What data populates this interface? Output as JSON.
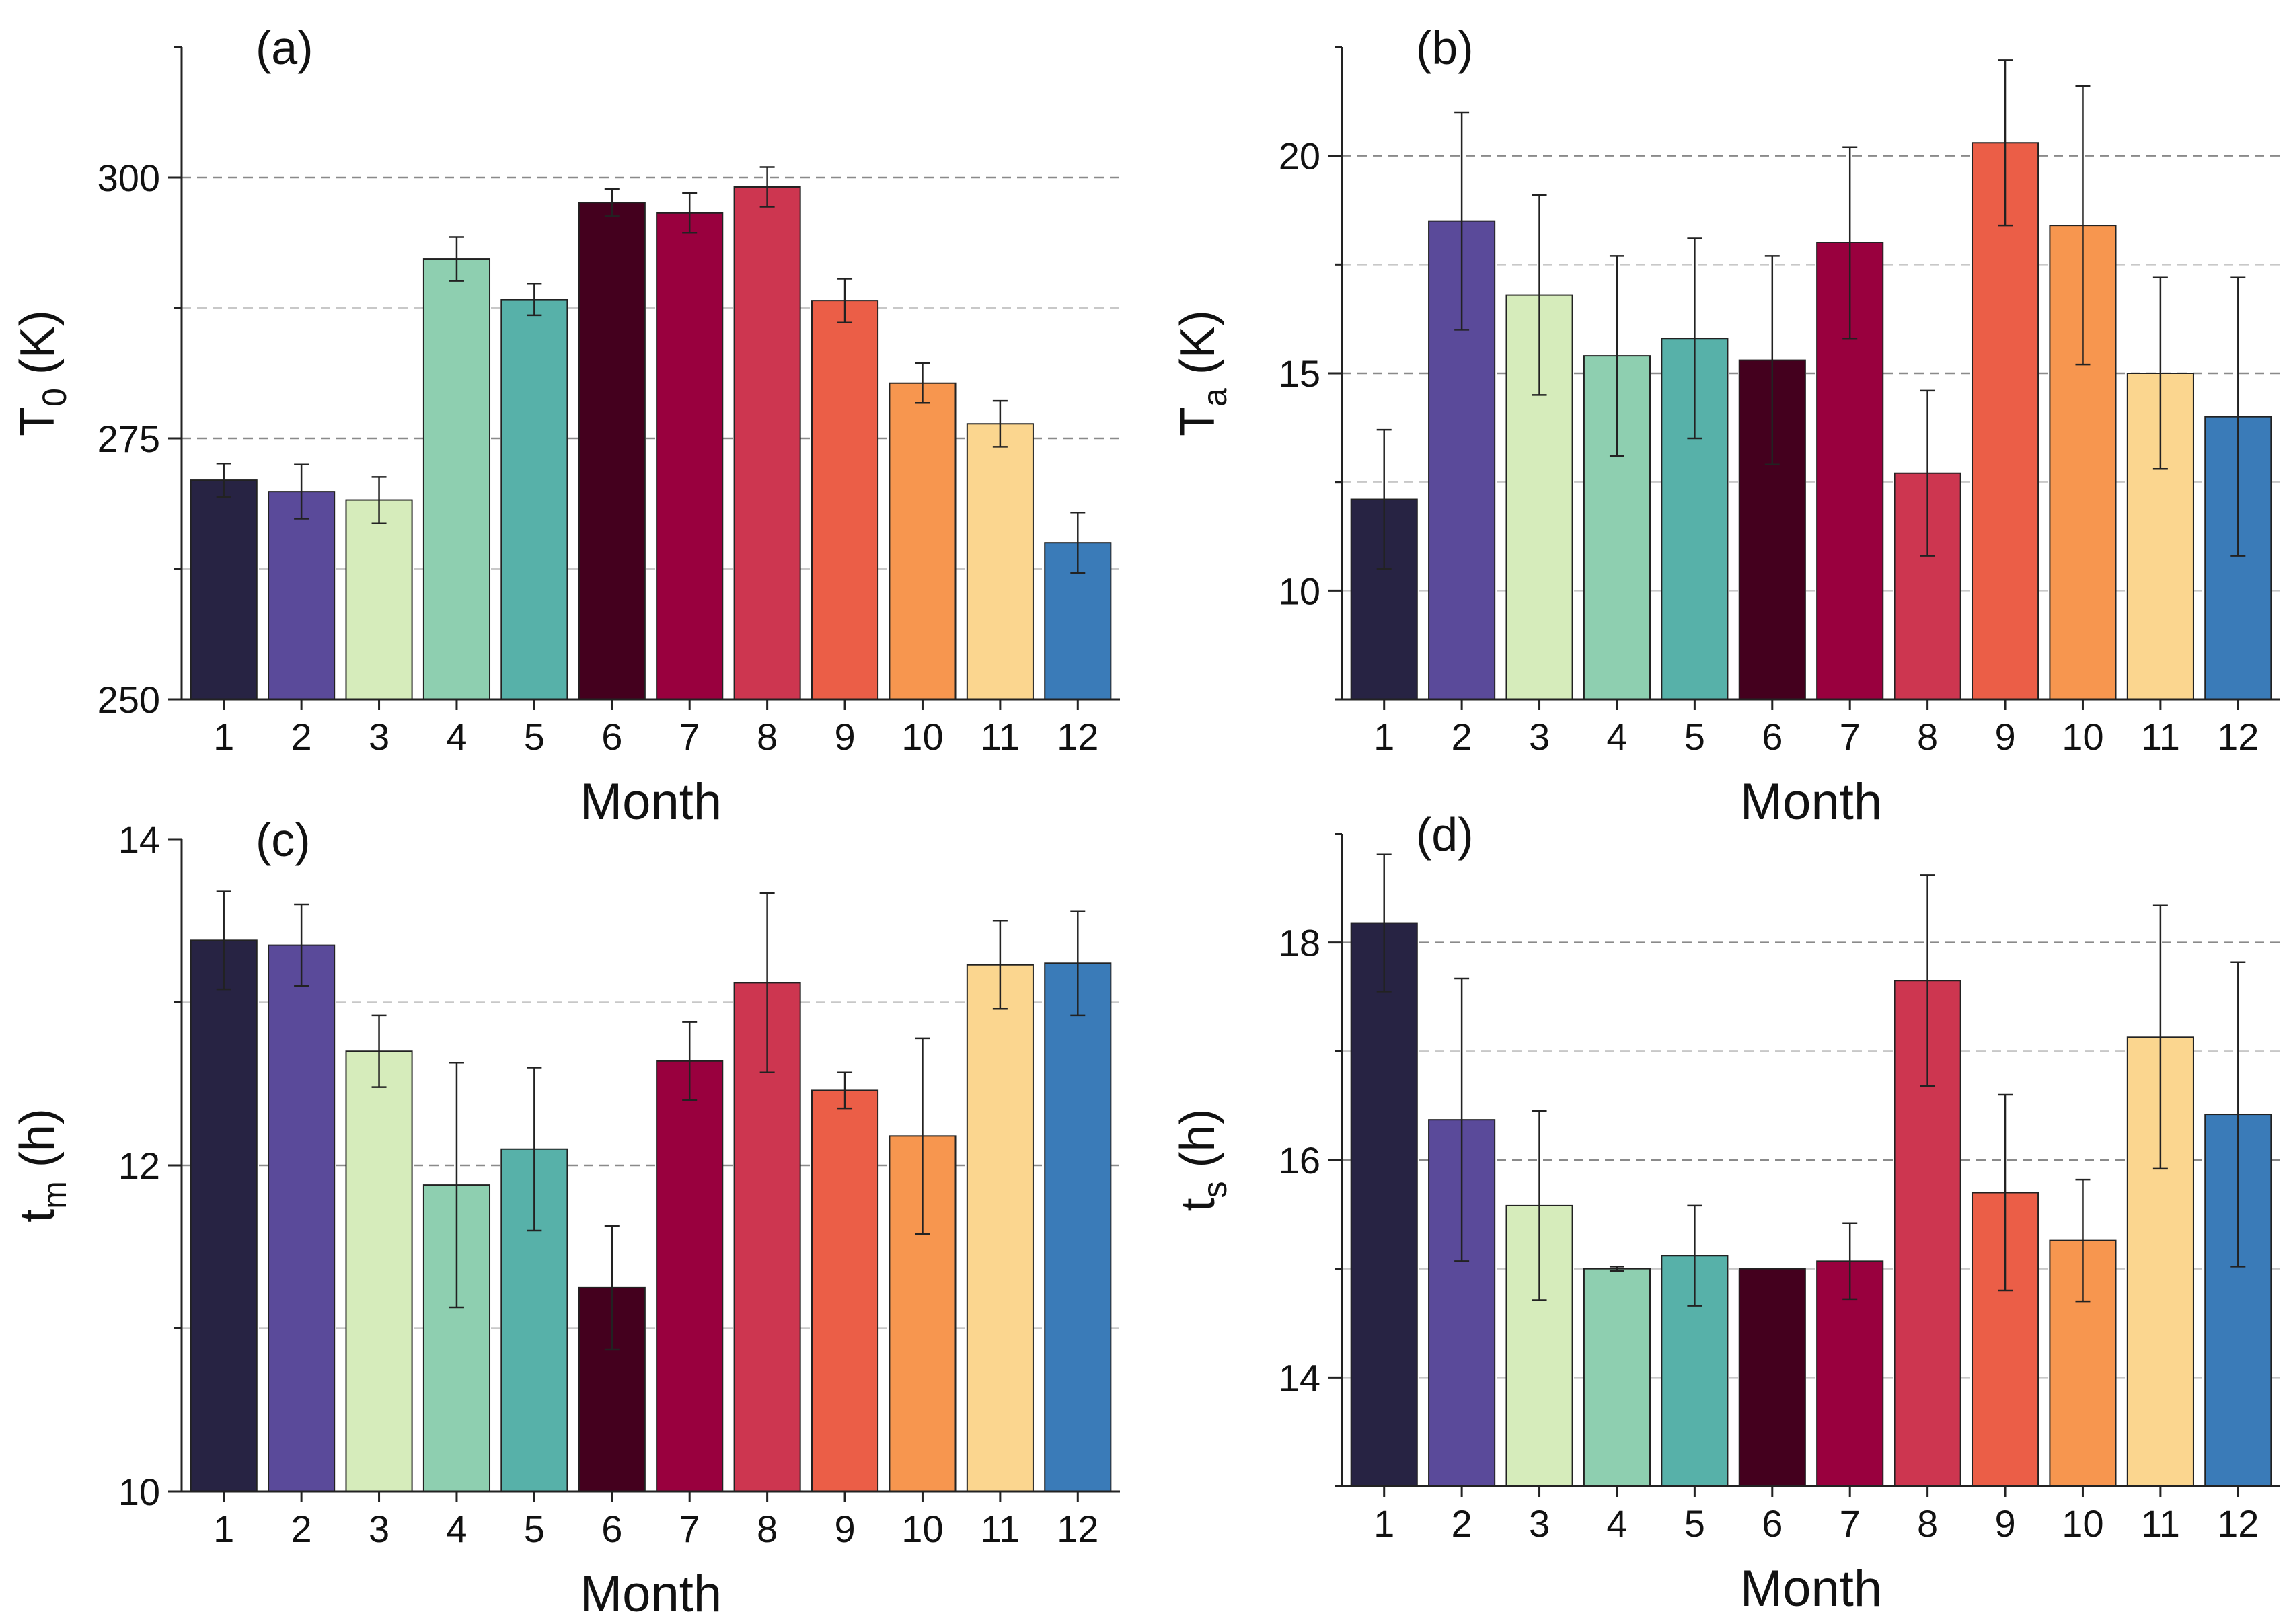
{
  "figure": {
    "x_axis_label": "Month"
  },
  "colors": [
    "#272343",
    "#5a4a9a",
    "#d6ecbb",
    "#8ecfb0",
    "#57b1a9",
    "#44001e",
    "#99003e",
    "#cd3650",
    "#eb5e47",
    "#f7964f",
    "#fbd68f",
    "#3a7bb8"
  ],
  "chart_data": [
    {
      "id": "a",
      "type": "bar",
      "panel_label": "(a)",
      "ylabel_main": "T",
      "ylabel_sub": "0",
      "ylabel_unit": " (K)",
      "xlabel": "Month",
      "categories": [
        "1",
        "2",
        "3",
        "4",
        "5",
        "6",
        "7",
        "8",
        "9",
        "10",
        "11",
        "12"
      ],
      "values": [
        271,
        269.9,
        269.1,
        292.2,
        288.3,
        297.6,
        296.6,
        299.1,
        288.2,
        280.3,
        276.4,
        265
      ],
      "errors": [
        1.6,
        2.6,
        2.2,
        2.1,
        1.5,
        1.3,
        1.9,
        1.9,
        2.1,
        1.9,
        2.2,
        2.9
      ],
      "ylim": [
        250,
        312.5
      ],
      "yticks": [
        250,
        275,
        300
      ],
      "ytick_labels": [
        "250",
        "275",
        "300"
      ],
      "gridlines": [
        262.5,
        275,
        287.5,
        300
      ],
      "major_gridlines": [
        275,
        300
      ]
    },
    {
      "id": "b",
      "type": "bar",
      "panel_label": "(b)",
      "ylabel_main": "T",
      "ylabel_sub": "a",
      "ylabel_unit": " (K)",
      "xlabel": "Month",
      "categories": [
        "1",
        "2",
        "3",
        "4",
        "5",
        "6",
        "7",
        "8",
        "9",
        "10",
        "11",
        "12"
      ],
      "values": [
        12.1,
        18.5,
        16.8,
        15.4,
        15.8,
        15.3,
        18,
        12.7,
        20.3,
        18.4,
        15,
        14
      ],
      "errors": [
        1.6,
        2.5,
        2.3,
        2.3,
        2.3,
        2.4,
        2.2,
        1.9,
        1.9,
        3.2,
        2.2,
        3.2
      ],
      "ylim": [
        7.5,
        22.5
      ],
      "yticks": [
        10,
        15,
        20
      ],
      "ytick_labels": [
        "10",
        "15",
        "20"
      ],
      "gridlines": [
        10,
        12.5,
        15,
        17.5,
        20
      ],
      "major_gridlines": [
        15,
        20
      ]
    },
    {
      "id": "c",
      "type": "bar",
      "panel_label": "(c)",
      "ylabel_main": "t",
      "ylabel_sub": "m",
      "ylabel_unit": " (h)",
      "xlabel": "Month",
      "categories": [
        "1",
        "2",
        "3",
        "4",
        "5",
        "6",
        "7",
        "8",
        "9",
        "10",
        "11",
        "12"
      ],
      "values": [
        13.38,
        13.35,
        12.7,
        11.88,
        12.1,
        11.25,
        12.64,
        13.12,
        12.46,
        12.18,
        13.23,
        13.24
      ],
      "errors": [
        0.3,
        0.25,
        0.22,
        0.75,
        0.5,
        0.38,
        0.24,
        0.55,
        0.11,
        0.6,
        0.27,
        0.32
      ],
      "ylim": [
        10,
        14
      ],
      "yticks": [
        10,
        12,
        14
      ],
      "ytick_labels": [
        "10",
        "12",
        "14"
      ],
      "gridlines": [
        11,
        12,
        13
      ],
      "major_gridlines": [
        12
      ]
    },
    {
      "id": "d",
      "type": "bar",
      "panel_label": "(d)",
      "ylabel_main": "t",
      "ylabel_sub": "s",
      "ylabel_unit": " (h)",
      "xlabel": "Month",
      "categories": [
        "1",
        "2",
        "3",
        "4",
        "5",
        "6",
        "7",
        "8",
        "9",
        "10",
        "11",
        "12"
      ],
      "values": [
        18.18,
        16.37,
        15.58,
        15,
        15.12,
        15,
        15.07,
        17.65,
        15.7,
        15.26,
        17.13,
        16.42
      ],
      "errors": [
        0.63,
        1.3,
        0.87,
        0.02,
        0.46,
        0,
        0.35,
        0.97,
        0.9,
        0.56,
        1.21,
        1.4
      ],
      "ylim": [
        13,
        19
      ],
      "yticks": [
        14,
        16,
        18
      ],
      "ytick_labels": [
        "14",
        "16",
        "18"
      ],
      "gridlines": [
        14,
        15,
        16,
        17,
        18
      ],
      "major_gridlines": [
        16,
        18
      ]
    }
  ]
}
